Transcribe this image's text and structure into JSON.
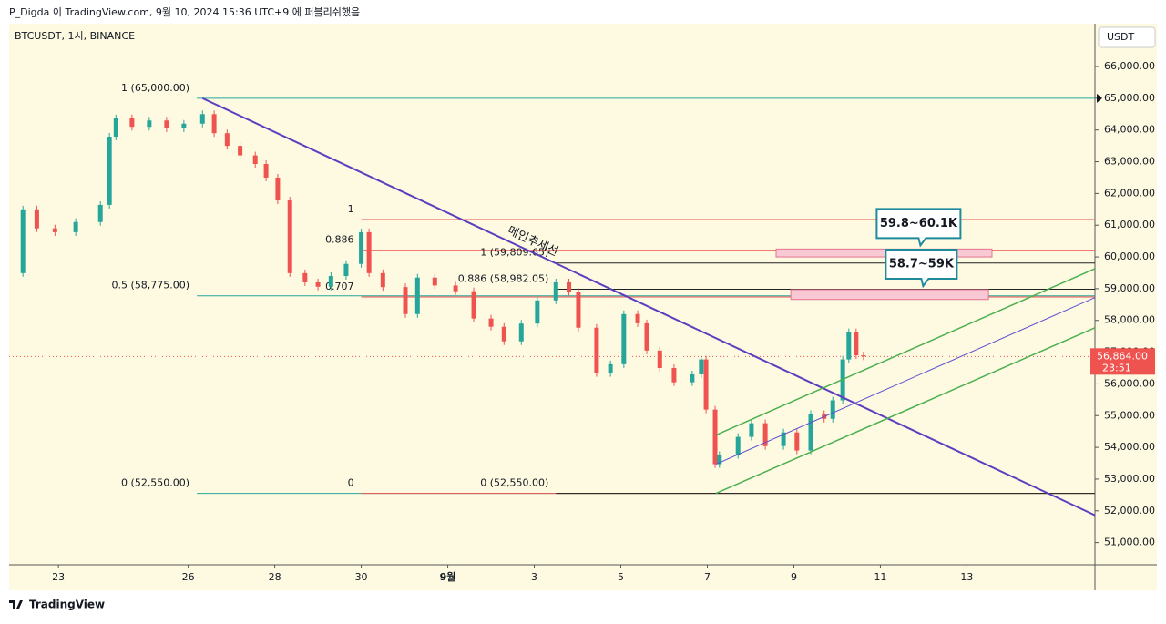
{
  "header": {
    "title": "P_Digda 이 TradingView.com, 9월 10, 2024 15:36 UTC+9 에 퍼블리쉬했음"
  },
  "chart_data": {
    "type": "candlestick",
    "title": "BTCUSDT, 1시, BINANCE",
    "currency": "USDT",
    "up_color": "#26a69a",
    "down_color": "#ef5350",
    "x": [
      -1.14,
      -0.82,
      -0.5,
      -0.08,
      0.4,
      0.97,
      1.18,
      1.33,
      1.7,
      2.1,
      2.5,
      2.9,
      3.33,
      3.6,
      3.9,
      4.2,
      4.55,
      4.8,
      5.07,
      5.35,
      5.7,
      6.0,
      6.3,
      6.65,
      7.0,
      7.18,
      7.5,
      8.02,
      8.3,
      8.7,
      9.18,
      9.6,
      10.0,
      10.3,
      10.7,
      11.07,
      11.5,
      11.8,
      12.02,
      12.44,
      12.76,
      13.07,
      13.39,
      13.6,
      13.9,
      14.23,
      14.65,
      14.86,
      14.97,
      15.18,
      15.28,
      15.71,
      16.02,
      16.34,
      16.76,
      17.07,
      17.39,
      17.7,
      17.9,
      18.13,
      18.27,
      18.44,
      18.61
    ],
    "values": [
      59490,
      61500,
      60900,
      60780,
      61100,
      61640,
      63790,
      64370,
      64100,
      64300,
      64050,
      64200,
      64500,
      63900,
      63500,
      63200,
      62930,
      62500,
      61780,
      59490,
      59200,
      59060,
      59400,
      59780,
      60780,
      59490,
      59050,
      58200,
      59350,
      59100,
      58920,
      58060,
      57800,
      57340,
      57900,
      58630,
      59200,
      58900,
      57770,
      56340,
      56620,
      58200,
      57910,
      57050,
      56500,
      56050,
      56300,
      56770,
      55190,
      53470,
      53760,
      54330,
      54760,
      54040,
      54470,
      53900,
      55050,
      54900,
      55480,
      56770,
      57630,
      56900,
      56864
    ],
    "xlim": [
      -1.14,
      23.96
    ],
    "ylim": [
      50300,
      67350
    ],
    "xticks": [
      {
        "value": 0,
        "label": "23"
      },
      {
        "value": 3,
        "label": "26"
      },
      {
        "value": 5,
        "label": "28"
      },
      {
        "value": 7,
        "label": "30"
      },
      {
        "value": 9,
        "label": "9월"
      },
      {
        "value": 11,
        "label": "3"
      },
      {
        "value": 13,
        "label": "5"
      },
      {
        "value": 15,
        "label": "7"
      },
      {
        "value": 17,
        "label": "9"
      },
      {
        "value": 19,
        "label": "11"
      },
      {
        "value": 21,
        "label": "13"
      }
    ],
    "yticks": [
      {
        "value": 51000,
        "label": "51,000.00"
      },
      {
        "value": 52000,
        "label": "52,000.00"
      },
      {
        "value": 53000,
        "label": "53,000.00"
      },
      {
        "value": 54000,
        "label": "54,000.00"
      },
      {
        "value": 55000,
        "label": "55,000.00"
      },
      {
        "value": 56000,
        "label": "56,000.00"
      },
      {
        "value": 57000,
        "label": "57,000.00"
      },
      {
        "value": 58000,
        "label": "58,000.00"
      },
      {
        "value": 59000,
        "label": "59,000.00"
      },
      {
        "value": 60000,
        "label": "60,000.00"
      },
      {
        "value": 61000,
        "label": "61,000.00"
      },
      {
        "value": 62000,
        "label": "62,000.00"
      },
      {
        "value": 63000,
        "label": "63,000.00"
      },
      {
        "value": 64000,
        "label": "64,000.00"
      },
      {
        "value": 65000,
        "label": "65,000.00"
      },
      {
        "value": 66000,
        "label": "66,000.00"
      }
    ],
    "last_price": {
      "value": 56864,
      "label": "56,864.00",
      "countdown": "23:51"
    },
    "fib_sets": [
      {
        "color": "#26a69a",
        "x": [
          3.2,
          23.96
        ],
        "levels": [
          {
            "text": "1 (65,000.00)",
            "price": 65000
          },
          {
            "text": "0.5 (58,775.00)",
            "price": 58775
          },
          {
            "text": "0 (52,550.00)",
            "price": 52550
          }
        ]
      },
      {
        "color": "#ef5350",
        "x": [
          7.0,
          23.96
        ],
        "levels": [
          {
            "text": "1",
            "price": 61180
          },
          {
            "text": "0.886",
            "price": 60210
          },
          {
            "text": "0.707",
            "price": 58740
          },
          {
            "text": "0",
            "price": 52550
          }
        ]
      },
      {
        "color": "#222222",
        "x": [
          11.5,
          23.96
        ],
        "levels": [
          {
            "text": "1 (59,809.65)",
            "price": 59809.65
          },
          {
            "text": "0.886 (58,982.05)",
            "price": 58982.05
          },
          {
            "text": "0 (52,550.00)",
            "price": 52550
          }
        ]
      }
    ],
    "trendlines": [
      {
        "color": "#5b3fbf",
        "width": 2,
        "label": "메인추세선",
        "x": [
          3.33,
          23.96
        ],
        "y": [
          65000,
          51860
        ]
      },
      {
        "color": "#4caf50",
        "width": 1.5,
        "x": [
          15.2,
          23.96
        ],
        "y": [
          54390,
          59630
        ]
      },
      {
        "color": "#4caf50",
        "width": 1.5,
        "x": [
          15.2,
          23.96
        ],
        "y": [
          52550,
          57770
        ]
      },
      {
        "color": "#5b4fd0",
        "width": 1,
        "x": [
          15.2,
          23.96
        ],
        "y": [
          53470,
          58720
        ]
      }
    ],
    "zones": [
      {
        "text": "59.8~60.1K",
        "x": [
          16.59,
          21.58
        ],
        "y": [
          60000,
          60250
        ]
      },
      {
        "text": "58.7~59K",
        "x": [
          16.93,
          21.5
        ],
        "y": [
          58660,
          58970
        ]
      }
    ]
  },
  "footer": {
    "brand": "TradingView"
  }
}
